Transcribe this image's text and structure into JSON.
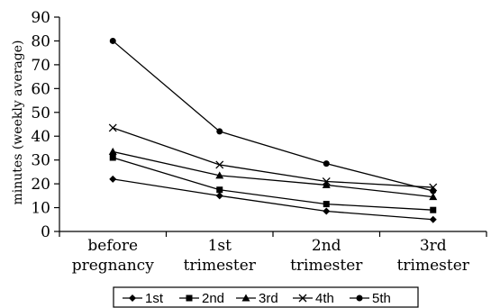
{
  "chart_data": {
    "type": "line",
    "title": "",
    "xlabel": "",
    "ylabel": "minutes (weekly average)",
    "ylim": [
      0,
      90
    ],
    "yticks": [
      0,
      10,
      20,
      30,
      40,
      50,
      60,
      70,
      80,
      90
    ],
    "grid": false,
    "legend_position": "bottom",
    "categories": [
      [
        "before",
        "pregnancy"
      ],
      [
        "1st",
        "trimester"
      ],
      [
        "2nd",
        "trimester"
      ],
      [
        "3rd",
        "trimester"
      ]
    ],
    "series": [
      {
        "name": "1st",
        "marker": "diamond",
        "values": [
          22,
          15,
          8.5,
          5
        ]
      },
      {
        "name": "2nd",
        "marker": "square",
        "values": [
          31,
          17.5,
          11.5,
          9
        ]
      },
      {
        "name": "3rd",
        "marker": "triangle",
        "values": [
          33.5,
          23.5,
          19.5,
          14.5
        ]
      },
      {
        "name": "4th",
        "marker": "x",
        "values": [
          43.5,
          28,
          21,
          18.5
        ]
      },
      {
        "name": "5th",
        "marker": "circle",
        "values": [
          80,
          42,
          28.5,
          17
        ]
      }
    ]
  }
}
